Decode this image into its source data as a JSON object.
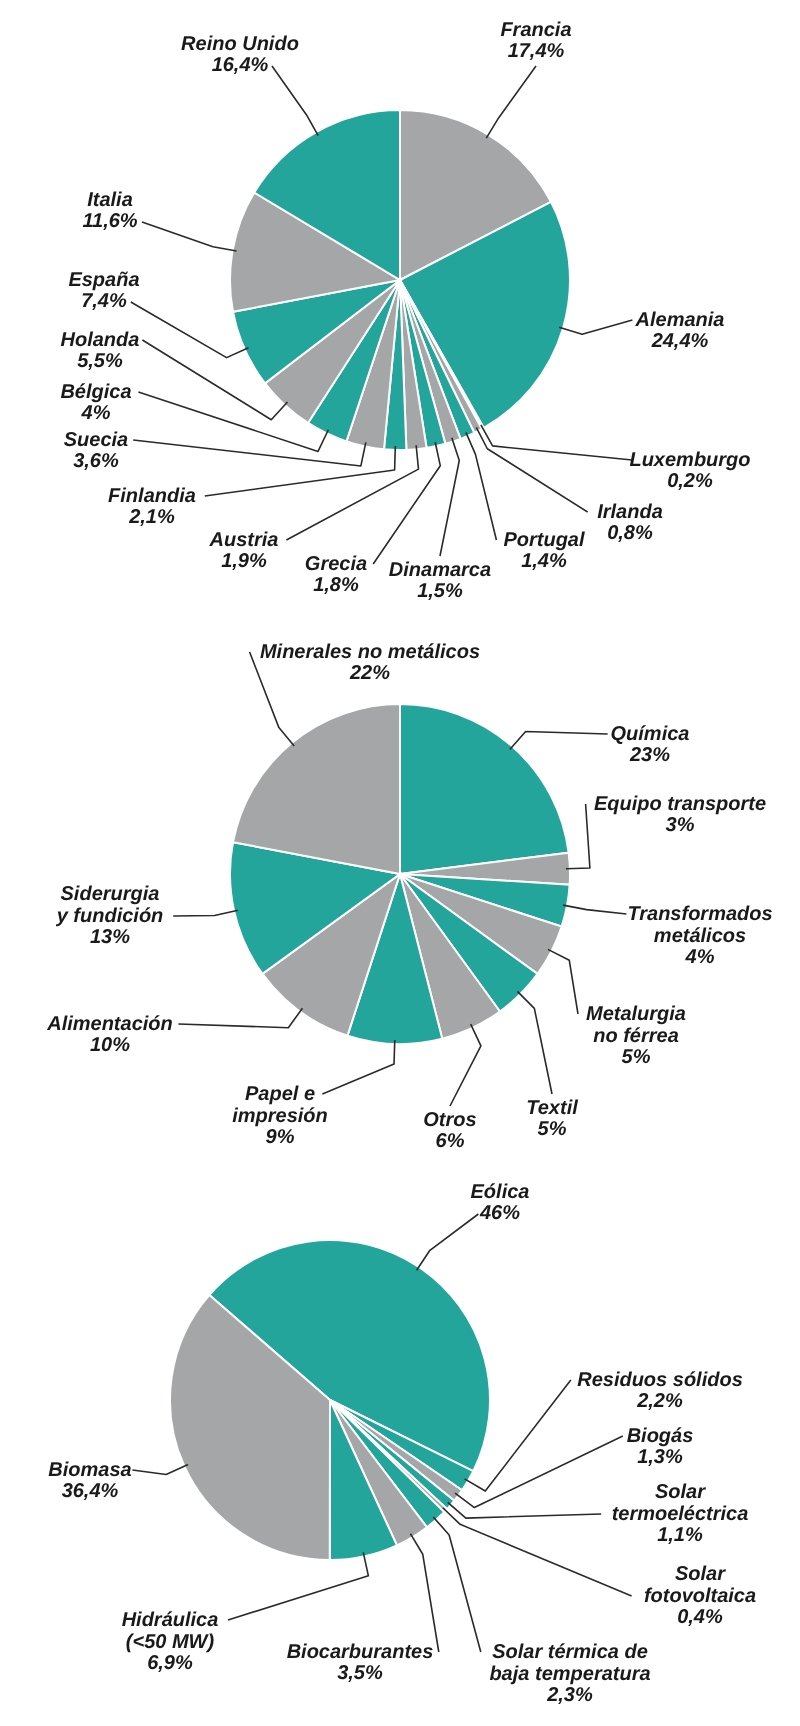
{
  "chart_data": [
    {
      "type": "pie",
      "categories": [
        "Francia",
        "Alemania",
        "Luxemburgo",
        "Irlanda",
        "Portugal",
        "Dinamarca",
        "Grecia",
        "Austria",
        "Finlandia",
        "Suecia",
        "Bélgica",
        "Holanda",
        "España",
        "Italia",
        "Reino Unido"
      ],
      "values": [
        17.4,
        24.4,
        0.2,
        0.8,
        1.4,
        1.5,
        1.8,
        1.9,
        2.1,
        3.6,
        4,
        5.5,
        7.4,
        11.6,
        16.4
      ],
      "value_labels": [
        "17,4%",
        "24,4%",
        "0,2%",
        "0,8%",
        "1,4%",
        "1,5%",
        "1,8%",
        "1,9%",
        "2,1%",
        "3,6%",
        "4%",
        "5,5%",
        "7,4%",
        "11,6%",
        "16,4%"
      ],
      "colors": [
        "#a4a6a8",
        "#23a59c",
        "#23a59c",
        "#a4a6a8",
        "#23a59c",
        "#a4a6a8",
        "#23a59c",
        "#a4a6a8",
        "#23a59c",
        "#a4a6a8",
        "#23a59c",
        "#a4a6a8",
        "#23a59c",
        "#a4a6a8",
        "#23a59c"
      ]
    },
    {
      "type": "pie",
      "categories": [
        "Química",
        "Equipo transporte",
        "Transformados metálicos",
        "Metalurgia no férrea",
        "Textil",
        "Otros",
        "Papel e impresión",
        "Alimentación",
        "Siderurgia y fundición",
        "Minerales no metálicos"
      ],
      "values": [
        23,
        3,
        4,
        5,
        5,
        6,
        9,
        10,
        13,
        22
      ],
      "value_labels": [
        "23%",
        "3%",
        "4%",
        "5%",
        "5%",
        "6%",
        "9%",
        "10%",
        "13%",
        "22%"
      ],
      "colors": [
        "#23a59c",
        "#a4a6a8",
        "#23a59c",
        "#a4a6a8",
        "#23a59c",
        "#a4a6a8",
        "#23a59c",
        "#a4a6a8",
        "#23a59c",
        "#a4a6a8"
      ]
    },
    {
      "type": "pie",
      "categories": [
        "Eólica",
        "Residuos sólidos",
        "Biogás",
        "Solar termoeléctrica",
        "Solar fotovoltaica",
        "Solar térmica de baja temperatura",
        "Biocarburantes",
        "Hidráulica (<50 MW)",
        "Biomasa"
      ],
      "values": [
        46,
        2.2,
        1.3,
        1.1,
        0.4,
        2.3,
        3.5,
        6.9,
        36.4
      ],
      "value_labels": [
        "46%",
        "2,2%",
        "1,3%",
        "1,1%",
        "0,4%",
        "2,3%",
        "3,5%",
        "6,9%",
        "36,4%"
      ],
      "colors": [
        "#23a59c",
        "#23a59c",
        "#a4a6a8",
        "#23a59c",
        "#a4a6a8",
        "#23a59c",
        "#a4a6a8",
        "#23a59c",
        "#a4a6a8"
      ]
    }
  ]
}
